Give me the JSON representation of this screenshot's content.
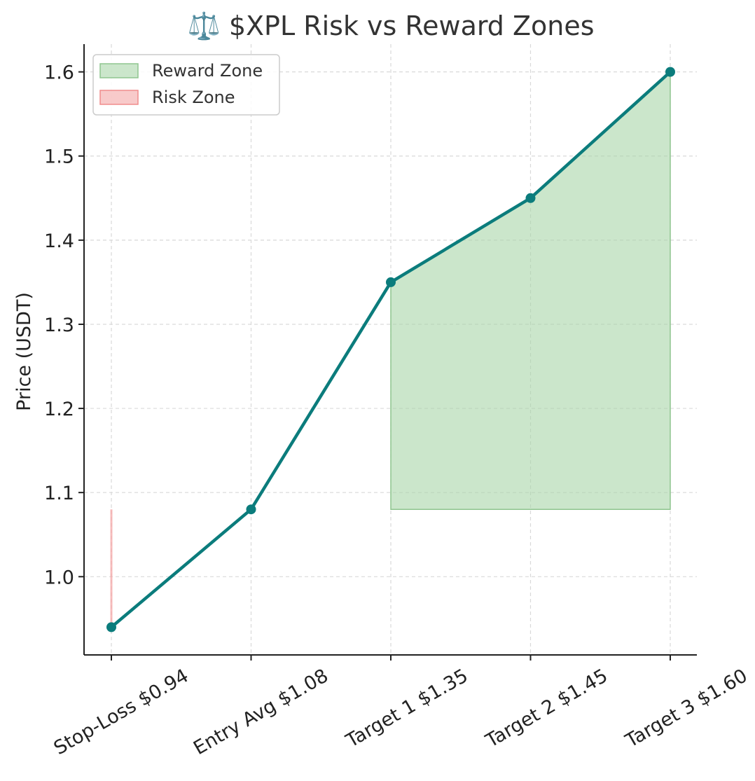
{
  "chart_data": {
    "type": "line",
    "title": "⚖️ $XPL Risk vs Reward Zones",
    "xlabel": "",
    "ylabel": "Price (USDT)",
    "categories": [
      "Stop-Loss $0.94",
      "Entry Avg $1.08",
      "Target 1 $1.35",
      "Target 2 $1.45",
      "Target 3 $1.60"
    ],
    "series": [
      {
        "values": [
          0.94,
          1.08,
          1.35,
          1.45,
          1.6
        ],
        "color": "#0b7c7c"
      }
    ],
    "zones": [
      {
        "name": "Reward Zone",
        "color": "#a8d5a8",
        "from_category": 2,
        "to_category": 4,
        "lower": 1.08,
        "upper_follows_series": true
      },
      {
        "name": "Risk Zone",
        "color": "#f4a6a6",
        "from_category": 0,
        "to_category": 0,
        "lower": 0.94,
        "upper": 1.08
      }
    ],
    "ylim": [
      0.907,
      1.633
    ],
    "yticks": [
      1.0,
      1.1,
      1.2,
      1.3,
      1.4,
      1.5,
      1.6
    ],
    "ytick_labels": [
      "1.0",
      "1.1",
      "1.2",
      "1.3",
      "1.4",
      "1.5",
      "1.6"
    ],
    "grid": true,
    "legend": {
      "placement": "top-left",
      "entries": [
        "Reward Zone",
        "Risk Zone"
      ]
    }
  }
}
